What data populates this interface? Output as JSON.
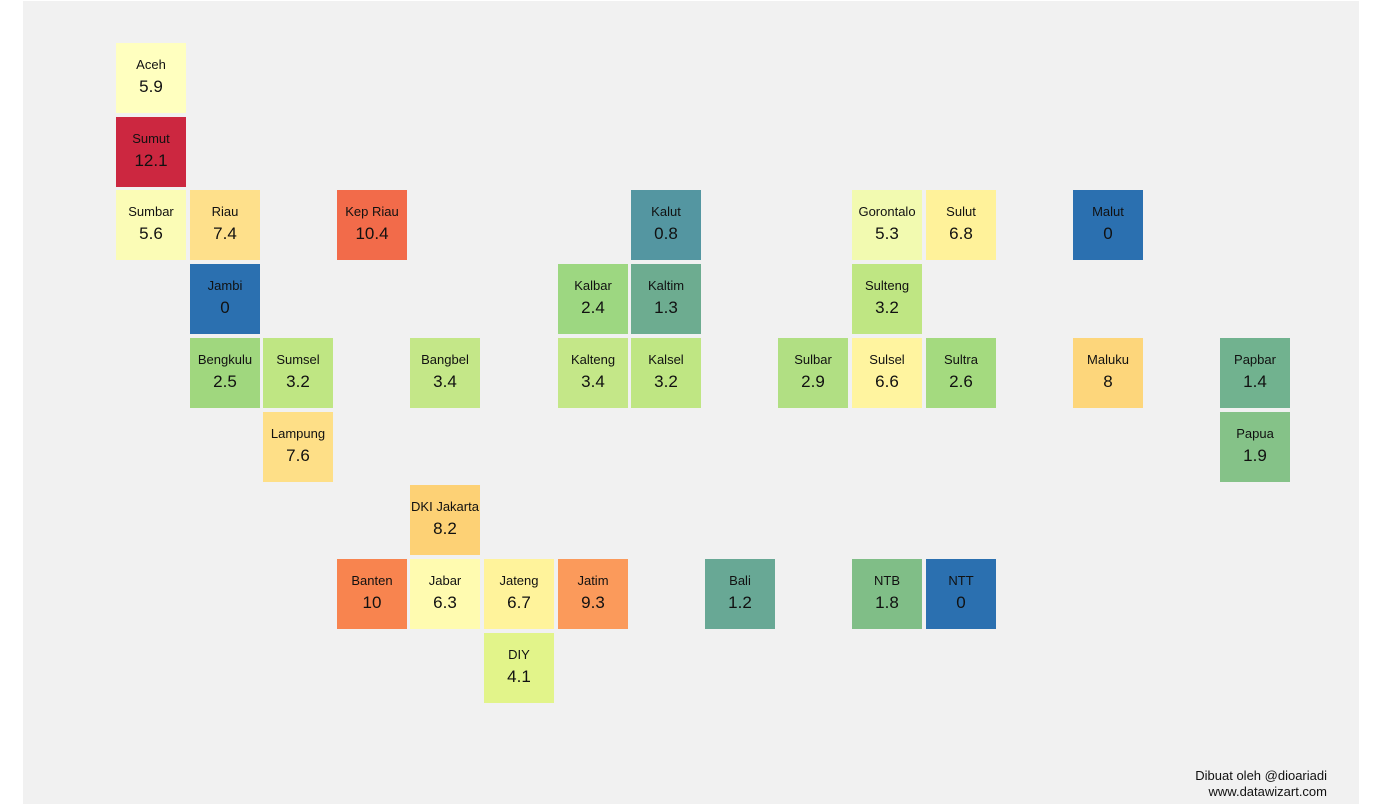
{
  "credit": {
    "line1": "Dibuat oleh @dioariadi",
    "line2": "www.datawizart.com"
  },
  "regions": [
    {
      "name": "Aceh",
      "value": 5.9,
      "display": "5.9",
      "color": "#ffffbf"
    },
    {
      "name": "Sumut",
      "value": 12.1,
      "display": "12.1",
      "color": "#cc2740"
    },
    {
      "name": "Sumbar",
      "value": 5.6,
      "display": "5.6",
      "color": "#fbfcb6"
    },
    {
      "name": "Riau",
      "value": 7.4,
      "display": "7.4",
      "color": "#fee08b"
    },
    {
      "name": "Kep Riau",
      "value": 10.4,
      "display": "10.4",
      "color": "#f26b4a"
    },
    {
      "name": "Kalut",
      "value": 0.8,
      "display": "0.8",
      "color": "#5496a1"
    },
    {
      "name": "Gorontalo",
      "value": 5.3,
      "display": "5.3",
      "color": "#f2fab0"
    },
    {
      "name": "Sulut",
      "value": 6.8,
      "display": "6.8",
      "color": "#fff29a"
    },
    {
      "name": "Malut",
      "value": 0,
      "display": "0",
      "color": "#2b70b0"
    },
    {
      "name": "Jambi",
      "value": 0,
      "display": "0",
      "color": "#2b70b0"
    },
    {
      "name": "Kalbar",
      "value": 2.4,
      "display": "2.4",
      "color": "#9dd781"
    },
    {
      "name": "Kaltim",
      "value": 1.3,
      "display": "1.3",
      "color": "#6dac90"
    },
    {
      "name": "Sulteng",
      "value": 3.2,
      "display": "3.2",
      "color": "#bfe683"
    },
    {
      "name": "Bengkulu",
      "value": 2.5,
      "display": "2.5",
      "color": "#a0d77e"
    },
    {
      "name": "Sumsel",
      "value": 3.2,
      "display": "3.2",
      "color": "#bfe683"
    },
    {
      "name": "Bangbel",
      "value": 3.4,
      "display": "3.4",
      "color": "#c4e788"
    },
    {
      "name": "Kalteng",
      "value": 3.4,
      "display": "3.4",
      "color": "#c4e788"
    },
    {
      "name": "Kalsel",
      "value": 3.2,
      "display": "3.2",
      "color": "#bfe683"
    },
    {
      "name": "Sulbar",
      "value": 2.9,
      "display": "2.9",
      "color": "#b1df83"
    },
    {
      "name": "Sulsel",
      "value": 6.6,
      "display": "6.6",
      "color": "#fff49f"
    },
    {
      "name": "Sultra",
      "value": 2.6,
      "display": "2.6",
      "color": "#a4da7f"
    },
    {
      "name": "Maluku",
      "value": 8,
      "display": "8",
      "color": "#fdd67b"
    },
    {
      "name": "Papbar",
      "value": 1.4,
      "display": "1.4",
      "color": "#71b28f"
    },
    {
      "name": "Lampung",
      "value": 7.6,
      "display": "7.6",
      "color": "#fedf87"
    },
    {
      "name": "Papua",
      "value": 1.9,
      "display": "1.9",
      "color": "#85c288"
    },
    {
      "name": "DKI Jakarta",
      "value": 8.2,
      "display": "8.2",
      "color": "#fdd175"
    },
    {
      "name": "Banten",
      "value": 10,
      "display": "10",
      "color": "#f8844f"
    },
    {
      "name": "Jabar",
      "value": 6.3,
      "display": "6.3",
      "color": "#fffbb0"
    },
    {
      "name": "Jateng",
      "value": 6.7,
      "display": "6.7",
      "color": "#fff39b"
    },
    {
      "name": "Jatim",
      "value": 9.3,
      "display": "9.3",
      "color": "#fb9a5b"
    },
    {
      "name": "Bali",
      "value": 1.2,
      "display": "1.2",
      "color": "#68a895"
    },
    {
      "name": "NTB",
      "value": 1.8,
      "display": "1.8",
      "color": "#80be87"
    },
    {
      "name": "NTT",
      "value": 0,
      "display": "0",
      "color": "#2b70b0"
    },
    {
      "name": "DIY",
      "value": 4.1,
      "display": "4.1",
      "color": "#e2f48a"
    }
  ]
}
